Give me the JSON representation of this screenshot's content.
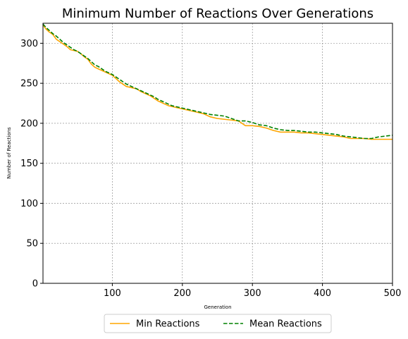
{
  "chart_data": {
    "type": "line",
    "title": "Minimum Number of Reactions Over Generations",
    "xlabel": "Generation",
    "ylabel": "Number of Reactions",
    "xlim": [
      1,
      500
    ],
    "ylim": [
      0,
      325
    ],
    "xticks": [
      100,
      200,
      300,
      400,
      500
    ],
    "yticks": [
      0,
      50,
      100,
      150,
      200,
      250,
      300
    ],
    "grid": true,
    "legend_position": "bottom-center",
    "series": [
      {
        "name": "Min Reactions",
        "color": "#ffa500",
        "style": "solid",
        "x": [
          1,
          5,
          10,
          15,
          20,
          25,
          30,
          35,
          40,
          45,
          50,
          55,
          60,
          65,
          70,
          75,
          80,
          85,
          90,
          95,
          100,
          105,
          110,
          115,
          120,
          125,
          130,
          135,
          140,
          145,
          150,
          155,
          160,
          165,
          170,
          175,
          180,
          185,
          190,
          195,
          200,
          210,
          220,
          230,
          240,
          250,
          260,
          270,
          280,
          290,
          300,
          310,
          320,
          330,
          340,
          350,
          360,
          370,
          380,
          390,
          400,
          410,
          420,
          430,
          440,
          450,
          460,
          470,
          480,
          490,
          500
        ],
        "values": [
          323,
          318,
          314,
          311,
          305,
          302,
          299,
          296,
          292,
          291,
          290,
          287,
          283,
          280,
          274,
          270,
          268,
          266,
          264,
          262,
          260,
          256,
          252,
          249,
          246,
          245,
          244,
          243,
          240,
          238,
          236,
          234,
          231,
          228,
          226,
          224,
          222,
          221,
          220,
          219,
          218,
          216,
          214,
          212,
          208,
          206,
          205,
          204,
          203,
          197,
          197,
          196,
          194,
          191,
          189,
          189,
          189,
          188,
          188,
          187,
          186,
          185,
          184,
          183,
          181,
          181,
          181,
          180,
          180,
          180,
          180
        ]
      },
      {
        "name": "Mean Reactions",
        "color": "#008000",
        "style": "dashed",
        "x": [
          1,
          5,
          10,
          15,
          20,
          25,
          30,
          35,
          40,
          45,
          50,
          55,
          60,
          65,
          70,
          75,
          80,
          85,
          90,
          95,
          100,
          105,
          110,
          115,
          120,
          125,
          130,
          135,
          140,
          145,
          150,
          155,
          160,
          165,
          170,
          175,
          180,
          185,
          190,
          195,
          200,
          210,
          220,
          230,
          240,
          250,
          260,
          270,
          280,
          290,
          300,
          310,
          320,
          330,
          340,
          350,
          360,
          370,
          380,
          390,
          400,
          410,
          420,
          430,
          440,
          450,
          460,
          470,
          480,
          490,
          500
        ],
        "values": [
          324,
          320,
          316,
          312,
          309,
          305,
          301,
          298,
          295,
          292,
          290,
          287,
          284,
          281,
          277,
          273,
          271,
          268,
          265,
          263,
          261,
          258,
          255,
          252,
          249,
          247,
          245,
          243,
          241,
          239,
          237,
          235,
          233,
          230,
          228,
          226,
          224,
          222,
          221,
          220,
          219,
          217,
          215,
          213,
          211,
          210,
          209,
          206,
          203,
          203,
          201,
          198,
          197,
          194,
          192,
          191,
          191,
          190,
          189,
          189,
          188,
          187,
          186,
          184,
          183,
          182,
          181,
          181,
          183,
          184,
          185
        ]
      }
    ]
  }
}
